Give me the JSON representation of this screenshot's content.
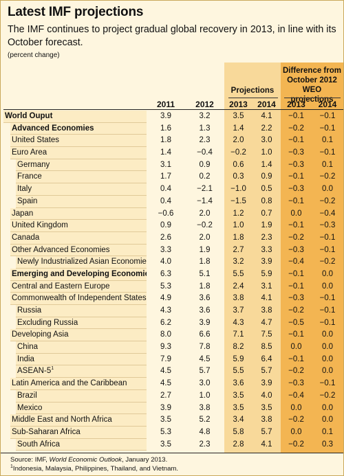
{
  "title": "Latest IMF projections",
  "subtitle": "The IMF continues to project gradual global recovery in 2013, in line with its October forecast.",
  "unit_note": "(percent change)",
  "headers": {
    "projections": "Projections",
    "difference": "Difference from October 2012 WEO projections",
    "years": [
      "2011",
      "2012",
      "2013",
      "2014",
      "2013",
      "2014"
    ]
  },
  "rows": [
    {
      "label": "World Ouput",
      "level": 0,
      "bold": true,
      "values": [
        "3.9",
        "3.2",
        "3.5",
        "4.1",
        "−0.1",
        "−0.1"
      ]
    },
    {
      "label": "Advanced Economies",
      "level": 1,
      "bold": true,
      "values": [
        "1.6",
        "1.3",
        "1.4",
        "2.2",
        "−0.2",
        "−0.1"
      ]
    },
    {
      "label": "United States",
      "level": 1,
      "bold": false,
      "values": [
        "1.8",
        "2.3",
        "2.0",
        "3.0",
        "−0.1",
        "0.1"
      ]
    },
    {
      "label": "Euro Area",
      "level": 1,
      "bold": false,
      "values": [
        "1.4",
        "−0.4",
        "−0.2",
        "1.0",
        "−0.3",
        "−0.1"
      ]
    },
    {
      "label": "Germany",
      "level": 2,
      "bold": false,
      "values": [
        "3.1",
        "0.9",
        "0.6",
        "1.4",
        "−0.3",
        "0.1"
      ]
    },
    {
      "label": "France",
      "level": 2,
      "bold": false,
      "values": [
        "1.7",
        "0.2",
        "0.3",
        "0.9",
        "−0.1",
        "−0.2"
      ]
    },
    {
      "label": "Italy",
      "level": 2,
      "bold": false,
      "values": [
        "0.4",
        "−2.1",
        "−1.0",
        "0.5",
        "−0.3",
        "0.0"
      ]
    },
    {
      "label": "Spain",
      "level": 2,
      "bold": false,
      "values": [
        "0.4",
        "−1.4",
        "−1.5",
        "0.8",
        "−0.1",
        "−0.2"
      ]
    },
    {
      "label": "Japan",
      "level": 1,
      "bold": false,
      "values": [
        "−0.6",
        "2.0",
        "1.2",
        "0.7",
        "0.0",
        "−0.4"
      ]
    },
    {
      "label": "United Kingdom",
      "level": 1,
      "bold": false,
      "values": [
        "0.9",
        "−0.2",
        "1.0",
        "1.9",
        "−0.1",
        "−0.3"
      ]
    },
    {
      "label": "Canada",
      "level": 1,
      "bold": false,
      "values": [
        "2.6",
        "2.0",
        "1.8",
        "2.3",
        "−0.2",
        "−0.1"
      ]
    },
    {
      "label": "Other Advanced Economies",
      "level": 1,
      "bold": false,
      "values": [
        "3.3",
        "1.9",
        "2.7",
        "3.3",
        "−0.3",
        "−0.1"
      ]
    },
    {
      "label": "Newly Industrialized Asian Economies",
      "level": 2,
      "bold": false,
      "values": [
        "4.0",
        "1.8",
        "3.2",
        "3.9",
        "−0.4",
        "−0.2"
      ]
    },
    {
      "label": "Emerging and Developing Economies",
      "level": 1,
      "bold": true,
      "values": [
        "6.3",
        "5.1",
        "5.5",
        "5.9",
        "−0.1",
        "0.0"
      ]
    },
    {
      "label": "Central and Eastern Europe",
      "level": 1,
      "bold": false,
      "values": [
        "5.3",
        "1.8",
        "2.4",
        "3.1",
        "−0.1",
        "0.0"
      ]
    },
    {
      "label": "Commonwealth of Independent States",
      "level": 1,
      "bold": false,
      "values": [
        "4.9",
        "3.6",
        "3.8",
        "4.1",
        "−0.3",
        "−0.1"
      ]
    },
    {
      "label": "Russia",
      "level": 2,
      "bold": false,
      "values": [
        "4.3",
        "3.6",
        "3.7",
        "3.8",
        "−0.2",
        "−0.1"
      ]
    },
    {
      "label": "Excluding Russia",
      "level": 2,
      "bold": false,
      "values": [
        "6.2",
        "3.9",
        "4.3",
        "4.7",
        "−0.5",
        "−0.1"
      ]
    },
    {
      "label": "Developing Asia",
      "level": 1,
      "bold": false,
      "values": [
        "8.0",
        "6.6",
        "7.1",
        "7.5",
        "−0.1",
        "0.0"
      ]
    },
    {
      "label": "China",
      "level": 2,
      "bold": false,
      "values": [
        "9.3",
        "7.8",
        "8.2",
        "8.5",
        "0.0",
        "0.0"
      ]
    },
    {
      "label": "India",
      "level": 2,
      "bold": false,
      "values": [
        "7.9",
        "4.5",
        "5.9",
        "6.4",
        "−0.1",
        "0.0"
      ]
    },
    {
      "label": "ASEAN-5",
      "sup": "1",
      "level": 2,
      "bold": false,
      "values": [
        "4.5",
        "5.7",
        "5.5",
        "5.7",
        "−0.2",
        "0.0"
      ]
    },
    {
      "label": "Latin America and the Caribbean",
      "level": 1,
      "bold": false,
      "values": [
        "4.5",
        "3.0",
        "3.6",
        "3.9",
        "−0.3",
        "−0.1"
      ]
    },
    {
      "label": "Brazil",
      "level": 2,
      "bold": false,
      "values": [
        "2.7",
        "1.0",
        "3.5",
        "4.0",
        "−0.4",
        "−0.2"
      ]
    },
    {
      "label": "Mexico",
      "level": 2,
      "bold": false,
      "values": [
        "3.9",
        "3.8",
        "3.5",
        "3.5",
        "0.0",
        "0.0"
      ]
    },
    {
      "label": "Middle East and North Africa",
      "level": 1,
      "bold": false,
      "values": [
        "3.5",
        "5.2",
        "3.4",
        "3.8",
        "−0.2",
        "0.0"
      ]
    },
    {
      "label": "Sub-Saharan Africa",
      "level": 1,
      "bold": false,
      "values": [
        "5.3",
        "4.8",
        "5.8",
        "5.7",
        "0.0",
        "0.1"
      ]
    },
    {
      "label": "South Africa",
      "level": 2,
      "bold": false,
      "values": [
        "3.5",
        "2.3",
        "2.8",
        "4.1",
        "−0.2",
        "0.3"
      ]
    }
  ],
  "footer": {
    "source_prefix": "Source: IMF, ",
    "source_title": "World Economic Outlook",
    "source_suffix": ", January 2013.",
    "note_marker": "1",
    "note_text": "Indonesia, Malaysia, Philippines, Thailand, and Vietnam."
  },
  "colors": {
    "background": "#fef6df",
    "label_band": "#fcecc4",
    "projections_band": "#f8d99a",
    "difference_band": "#f3b552",
    "border": "#c9a85a"
  }
}
